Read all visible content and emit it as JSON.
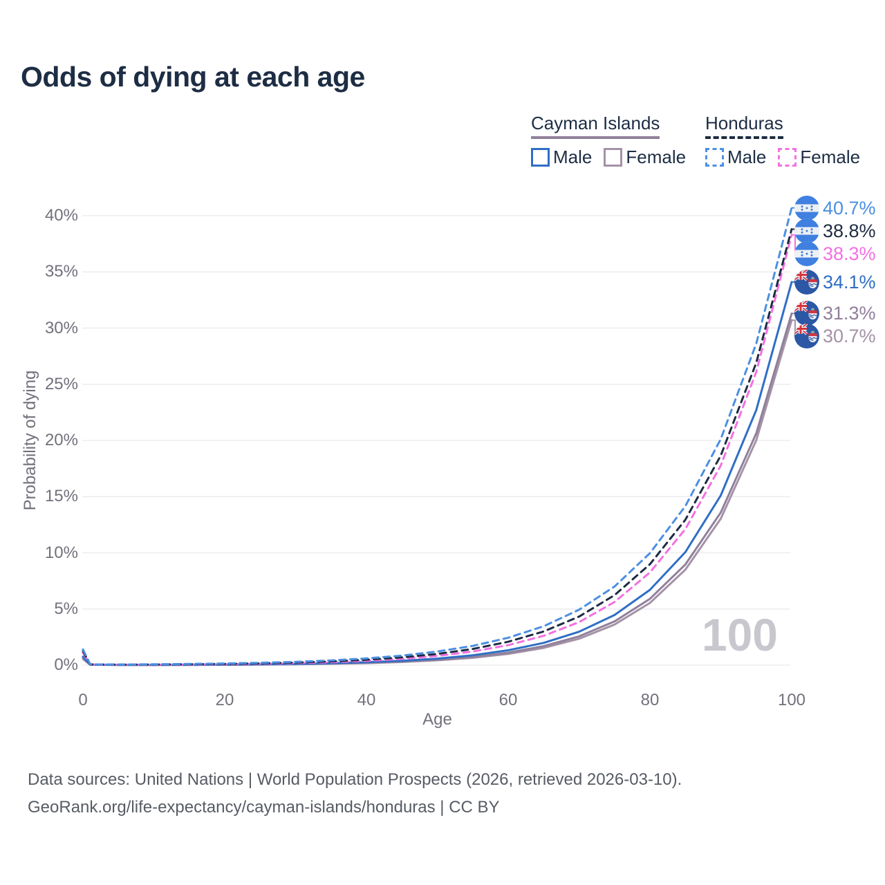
{
  "page": {
    "title": "Odds of dying at each age",
    "watermark_age": "100"
  },
  "legend": {
    "cayman": {
      "title": "Cayman Islands",
      "male": "Male",
      "female": "Female"
    },
    "honduras": {
      "title": "Honduras",
      "male": "Male",
      "female": "Female"
    }
  },
  "footer": {
    "line1": "Data sources: United Nations | World Population Prospects (2026, retrieved 2026-03-10).",
    "line2": "GeoRank.org/life-expectancy/cayman-islands/honduras | CC BY"
  },
  "colors": {
    "title_text": "#1d2d44",
    "axis_text": "#71717c",
    "gridline": "#ededf1",
    "watermark": "#c9c7ce",
    "honduras_male": "#4b8fe2",
    "honduras_both": "#1e2c42",
    "honduras_female": "#f470e1",
    "cayman_male": "#2f6ec5",
    "cayman_both": "#90809b",
    "cayman_female": "#a492a6"
  },
  "chart_data": {
    "type": "line",
    "title": "Odds of dying at each age",
    "xlabel": "Age",
    "ylabel": "Probability of dying",
    "xlim": [
      0,
      100
    ],
    "ylim_pct": [
      0,
      42
    ],
    "grid": true,
    "legend_position": "top-right",
    "xticks": [
      0,
      20,
      40,
      60,
      80,
      100
    ],
    "yticks": [
      "0%",
      "5%",
      "10%",
      "15%",
      "20%",
      "25%",
      "30%",
      "35%",
      "40%"
    ],
    "ytick_values": [
      0,
      5,
      10,
      15,
      20,
      25,
      30,
      35,
      40
    ],
    "hovered_age": 100,
    "x": [
      0,
      1,
      2,
      5,
      10,
      15,
      20,
      25,
      30,
      35,
      40,
      45,
      50,
      55,
      60,
      65,
      70,
      75,
      80,
      85,
      90,
      95,
      100
    ],
    "series": [
      {
        "name": "Honduras Male",
        "country": "Honduras",
        "sex": "Male",
        "color": "#4b8fe2",
        "dash": true,
        "flag": "honduras",
        "end_label": "40.7%",
        "end_value_pct": 40.7,
        "values_pct": [
          1.4,
          0.09,
          0.06,
          0.055,
          0.072,
          0.102,
          0.146,
          0.21,
          0.29,
          0.42,
          0.6,
          0.85,
          1.21,
          1.71,
          2.44,
          3.46,
          4.93,
          7.0,
          9.96,
          14.16,
          20.13,
          28.62,
          40.7
        ]
      },
      {
        "name": "Honduras Both sexes",
        "country": "Honduras",
        "sex": "Both",
        "color": "#1e2c42",
        "dash": true,
        "flag": "honduras",
        "end_label": "38.8%",
        "end_value_pct": 38.8,
        "values_pct": [
          1.25,
          0.08,
          0.055,
          0.045,
          0.054,
          0.077,
          0.11,
          0.16,
          0.23,
          0.33,
          0.48,
          0.69,
          1.0,
          1.44,
          2.08,
          3.0,
          4.32,
          6.23,
          8.98,
          12.94,
          18.66,
          26.91,
          38.8
        ]
      },
      {
        "name": "Honduras Female",
        "country": "Honduras",
        "sex": "Female",
        "color": "#f470e1",
        "dash": true,
        "flag": "honduras",
        "end_label": "38.3%",
        "end_value_pct": 38.3,
        "values_pct": [
          1.1,
          0.07,
          0.05,
          0.04,
          0.038,
          0.056,
          0.082,
          0.12,
          0.18,
          0.26,
          0.38,
          0.56,
          0.82,
          1.21,
          1.78,
          2.61,
          3.83,
          5.62,
          8.25,
          12.11,
          17.77,
          26.09,
          38.3
        ]
      },
      {
        "name": "Cayman Islands Male",
        "country": "Cayman Islands",
        "sex": "Male",
        "color": "#2f6ec5",
        "dash": false,
        "flag": "cayman",
        "end_label": "34.1%",
        "end_value_pct": 34.1,
        "values_pct": [
          0.75,
          0.05,
          0.035,
          0.025,
          0.023,
          0.034,
          0.051,
          0.076,
          0.11,
          0.17,
          0.26,
          0.39,
          0.58,
          0.88,
          1.32,
          1.98,
          2.97,
          4.46,
          6.7,
          10.06,
          15.11,
          22.7,
          34.1
        ]
      },
      {
        "name": "Cayman Islands Both sexes",
        "country": "Cayman Islands",
        "sex": "Both",
        "color": "#90809b",
        "dash": false,
        "flag": "cayman",
        "end_label": "31.3%",
        "end_value_pct": 31.3,
        "values_pct": [
          0.65,
          0.045,
          0.03,
          0.022,
          0.017,
          0.026,
          0.039,
          0.06,
          0.091,
          0.14,
          0.21,
          0.32,
          0.48,
          0.73,
          1.11,
          1.69,
          2.56,
          3.89,
          5.9,
          8.96,
          13.59,
          20.63,
          31.3
        ]
      },
      {
        "name": "Cayman Islands Female",
        "country": "Cayman Islands",
        "sex": "Female",
        "color": "#a492a6",
        "dash": false,
        "flag": "cayman",
        "end_label": "30.7%",
        "end_value_pct": 30.7,
        "values_pct": [
          0.55,
          0.04,
          0.028,
          0.02,
          0.014,
          0.021,
          0.033,
          0.05,
          0.077,
          0.12,
          0.18,
          0.28,
          0.43,
          0.65,
          1.0,
          1.53,
          2.35,
          3.61,
          5.54,
          8.5,
          13.04,
          20.01,
          30.7
        ]
      }
    ]
  }
}
